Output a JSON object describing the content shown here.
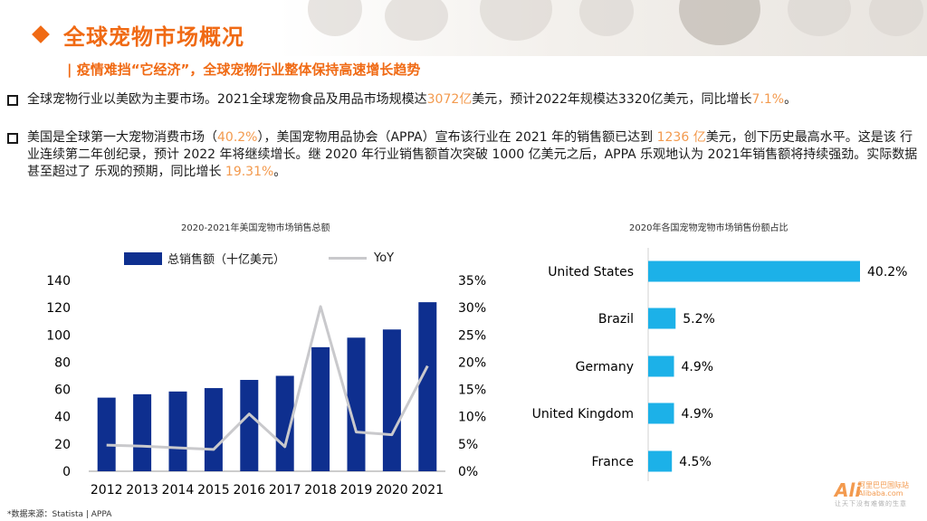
{
  "page": {
    "title": "全球宠物市场概况",
    "subtitle": "| 疫情难挡“它经济”，全球宠物行业整体保持高速增长趋势",
    "source": "*数据来源：Statista | APPA"
  },
  "bullets": [
    {
      "t1": "全球宠物行业以美欧为主要市场。2021全球宠物食品及用品市场规模达",
      "h1": "3072亿",
      "t2": "美元，预计2022年规模达3320亿美元，同比增长",
      "h2": "7.1%",
      "t3": "。"
    },
    {
      "t1": "美国是全球第一大宠物消费市场（",
      "h1": "40.2%",
      "t2": "），美国宠物用品协会（APPA）宣布该行业在 2021 年的销售额已达到 ",
      "h2": "1236 亿",
      "t3": "美元，创下历史最高水平。这是该 行业连续第二年创纪录，预计 2022 年将继续增长。继 2020 年行业销售额首次突破 1000 亿美元之后，APPA 乐观地认为 2021年销售额将持续强劲。实际数据甚至超过了 乐观的预期，同比增长 ",
      "h3": "19.31%",
      "t4": "。"
    }
  ],
  "logo": {
    "mark": "Ali",
    "name_cn": "阿里巴巴国际站",
    "name_en": "Alibaba.com",
    "slogan": "让天下没有难做的生意"
  },
  "colors": {
    "accent": "#f06a14",
    "highlight": "#f39a4e",
    "bar": "#0e2f8f",
    "line": "#c9c9cc",
    "hbar": "#1cb1e8"
  },
  "chart_data": [
    {
      "type": "bar",
      "title": "2020-2021年美国宠物市场销售总额",
      "categories": [
        "2012",
        "2013",
        "2014",
        "2015",
        "2016",
        "2017",
        "2018",
        "2019",
        "2020",
        "2021"
      ],
      "series": [
        {
          "name": "总销售额（十亿美元）",
          "type": "bar",
          "axis": "left",
          "values": [
            54,
            56.5,
            58.5,
            61,
            67,
            70,
            91,
            98,
            104,
            124
          ]
        },
        {
          "name": "YoY",
          "type": "line",
          "axis": "right",
          "values": [
            4.8,
            4.6,
            4.3,
            4.0,
            10.5,
            4.5,
            30.2,
            7.2,
            6.7,
            19.3
          ]
        }
      ],
      "left_axis": {
        "ticks": [
          "0",
          "20",
          "40",
          "60",
          "80",
          "100",
          "120",
          "140"
        ],
        "ylim": [
          0,
          140
        ]
      },
      "right_axis": {
        "ticks": [
          "0%",
          "5%",
          "10%",
          "15%",
          "20%",
          "25%",
          "30%",
          "35%"
        ],
        "ylim": [
          0,
          35
        ]
      },
      "legend": "top"
    },
    {
      "type": "bar",
      "orientation": "horizontal",
      "title": "2020年各国宠物宠物市场销售份额占比",
      "categories": [
        "United States",
        "Brazil",
        "Germany",
        "United Kingdom",
        "France"
      ],
      "values": [
        40.2,
        5.2,
        4.9,
        4.9,
        4.5
      ],
      "labels": [
        "40.2%",
        "5.2%",
        "4.9%",
        "4.9%",
        "4.5%"
      ]
    }
  ]
}
